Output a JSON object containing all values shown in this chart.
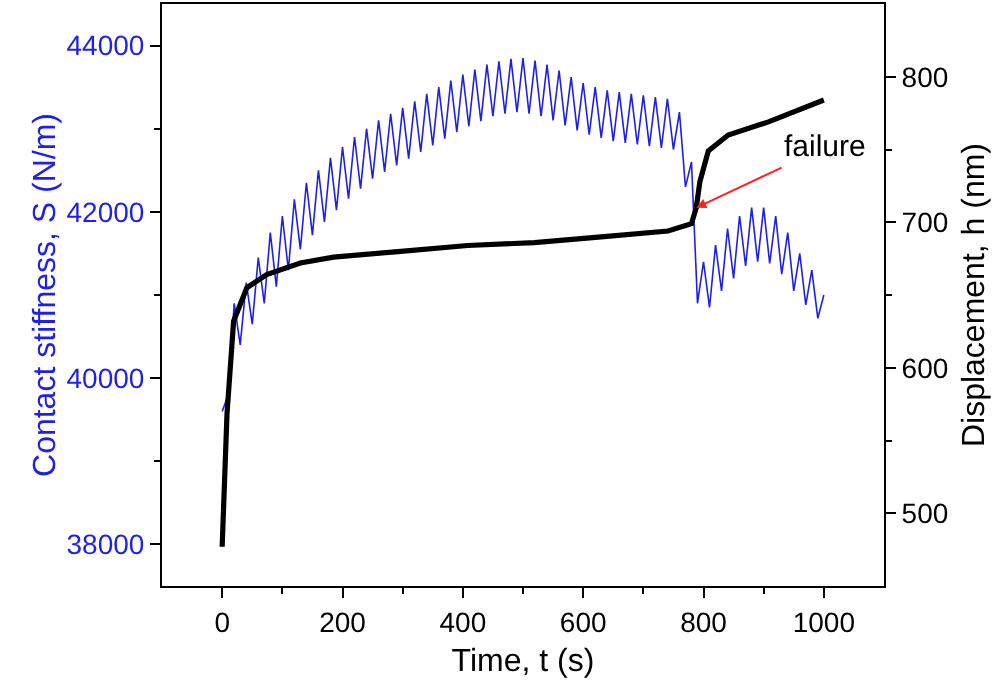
{
  "chart_data": {
    "type": "line",
    "xlabel": "Time, t (s)",
    "ylabel": "Contact stiffness, S (N/m)",
    "y2label": "Displacement, h (nm)",
    "xlim": [
      -100,
      1100
    ],
    "xticks": [
      0,
      200,
      400,
      600,
      800,
      1000
    ],
    "ylim": [
      37500,
      44500
    ],
    "yticks": [
      38000,
      40000,
      42000,
      44000
    ],
    "y2lim": [
      450,
      850
    ],
    "y2ticks": [
      500,
      600,
      700,
      800
    ],
    "grid": false,
    "marker": "none",
    "line_style": "solid",
    "annotations": [
      {
        "text": "failure",
        "x": 788,
        "y": 42050
      }
    ],
    "series": [
      {
        "color": "#1f1fe6",
        "x": [
          0,
          10,
          20,
          30,
          40,
          50,
          60,
          70,
          80,
          90,
          100,
          110,
          120,
          130,
          140,
          150,
          160,
          170,
          180,
          190,
          200,
          210,
          220,
          230,
          240,
          250,
          260,
          270,
          280,
          290,
          300,
          310,
          320,
          330,
          340,
          350,
          360,
          370,
          380,
          390,
          400,
          410,
          420,
          430,
          440,
          450,
          460,
          470,
          480,
          490,
          500,
          510,
          520,
          530,
          540,
          550,
          560,
          570,
          580,
          590,
          600,
          610,
          620,
          630,
          640,
          650,
          660,
          670,
          680,
          690,
          700,
          710,
          720,
          730,
          740,
          750,
          760,
          770,
          780,
          790,
          800,
          810,
          820,
          830,
          840,
          850,
          860,
          870,
          880,
          890,
          900,
          910,
          920,
          930,
          940,
          950,
          960,
          970,
          980,
          990,
          1000
        ],
        "values": [
          39600,
          39800,
          40900,
          40400,
          41150,
          40650,
          41450,
          40900,
          41750,
          41100,
          41950,
          41300,
          42150,
          41550,
          42350,
          41720,
          42500,
          41880,
          42650,
          42020,
          42780,
          42160,
          42900,
          42280,
          43000,
          42400,
          43100,
          42480,
          43180,
          42560,
          43250,
          42640,
          43330,
          42720,
          43420,
          42800,
          43500,
          42880,
          43580,
          42960,
          43650,
          43030,
          43710,
          43090,
          43770,
          43150,
          43810,
          43180,
          43840,
          43200,
          43850,
          43180,
          43820,
          43150,
          43770,
          43100,
          43700,
          43040,
          43620,
          42980,
          43550,
          42930,
          43500,
          42890,
          43460,
          42850,
          43440,
          42830,
          43420,
          42810,
          43400,
          42790,
          43380,
          42770,
          43360,
          42750,
          43200,
          42300,
          42600,
          40900,
          41400,
          40850,
          41600,
          41050,
          41800,
          41200,
          41950,
          41350,
          42050,
          41400,
          42050,
          41380,
          41950,
          41250,
          41750,
          41050,
          41500,
          40880,
          41300,
          40720,
          41000
        ]
      },
      {
        "color": "#000000",
        "axis": "y2",
        "x": [
          0,
          8,
          19,
          41,
          74,
          130,
          185,
          297,
          408,
          519,
          630,
          741,
          780,
          788,
          794,
          808,
          841,
          908,
          1000
        ],
        "values": [
          477,
          568,
          632,
          655,
          664,
          672,
          676,
          680,
          684,
          686,
          690,
          694,
          699,
          710,
          728,
          749,
          760,
          769,
          784
        ]
      }
    ]
  }
}
